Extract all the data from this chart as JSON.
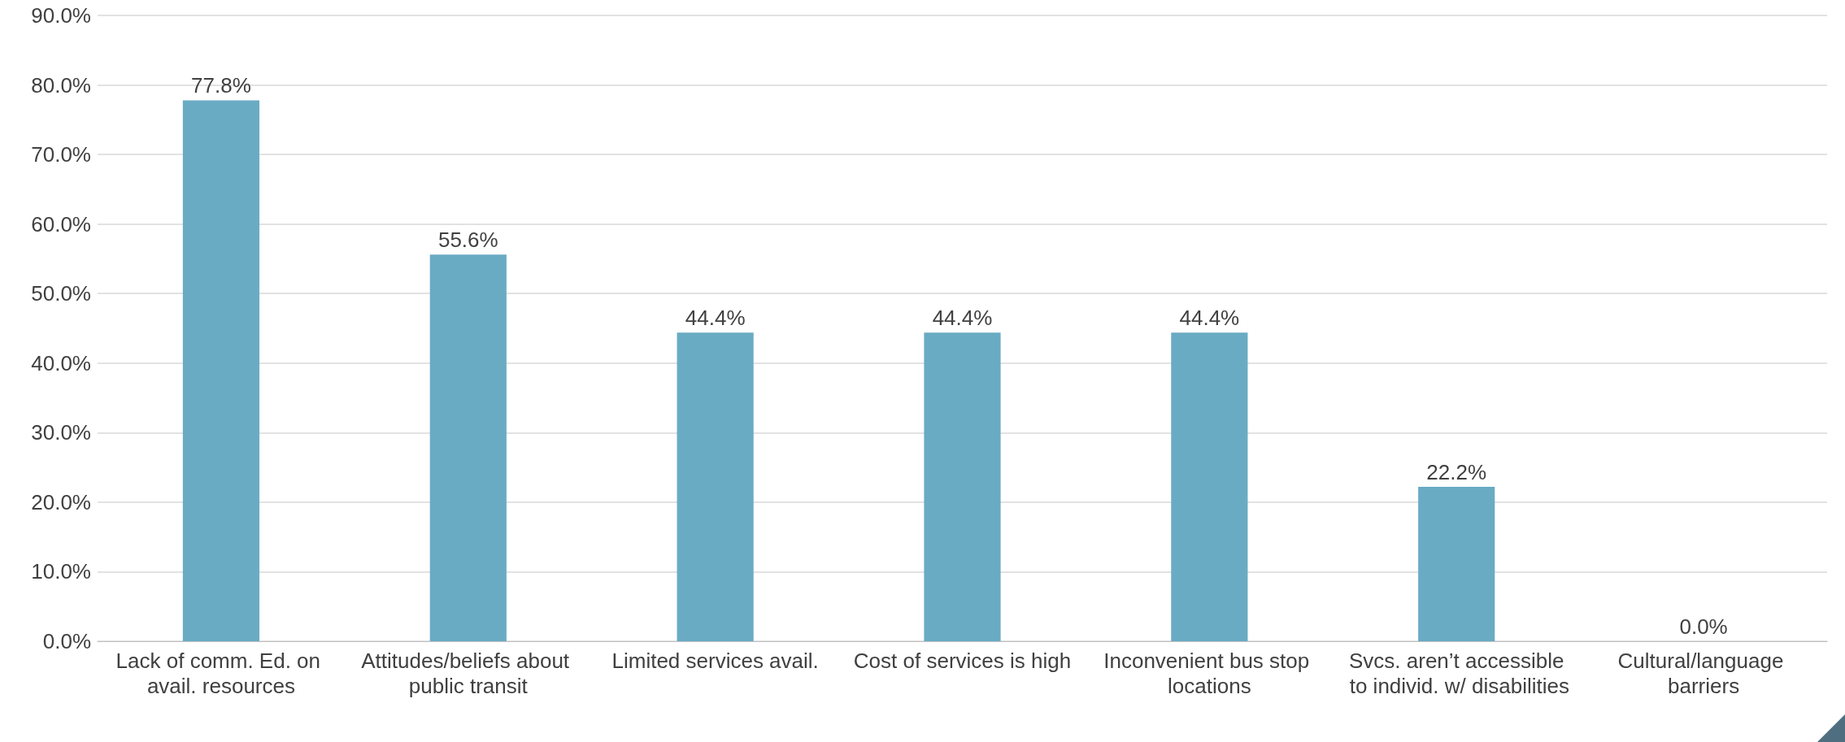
{
  "chart_data": {
    "type": "bar",
    "categories": [
      "Lack of comm. Ed. on avail. resources",
      "Attitudes/beliefs about public transit",
      "Limited services avail.",
      "Cost of services is high",
      "Inconvenient bus stop locations",
      "Svcs. aren’t accessible to individ. w/ disabilities",
      "Cultural/language barriers"
    ],
    "values": [
      77.8,
      55.6,
      44.4,
      44.4,
      44.4,
      22.2,
      0.0
    ],
    "value_labels": [
      "77.8%",
      "55.6%",
      "44.4%",
      "44.4%",
      "44.4%",
      "22.2%",
      "0.0%"
    ],
    "color": "#6aabc4",
    "ylim": [
      0,
      90
    ],
    "yticks": [
      {
        "value": 0,
        "label": "0.0%"
      },
      {
        "value": 10,
        "label": "10.0%"
      },
      {
        "value": 20,
        "label": "20.0%"
      },
      {
        "value": 30,
        "label": "30.0%"
      },
      {
        "value": 40,
        "label": "40.0%"
      },
      {
        "value": 50,
        "label": "50.0%"
      },
      {
        "value": 60,
        "label": "60.0%"
      },
      {
        "value": 70,
        "label": "70.0%"
      },
      {
        "value": 80,
        "label": "80.0%"
      },
      {
        "value": 90,
        "label": "90.0%"
      }
    ],
    "grid": "y"
  }
}
